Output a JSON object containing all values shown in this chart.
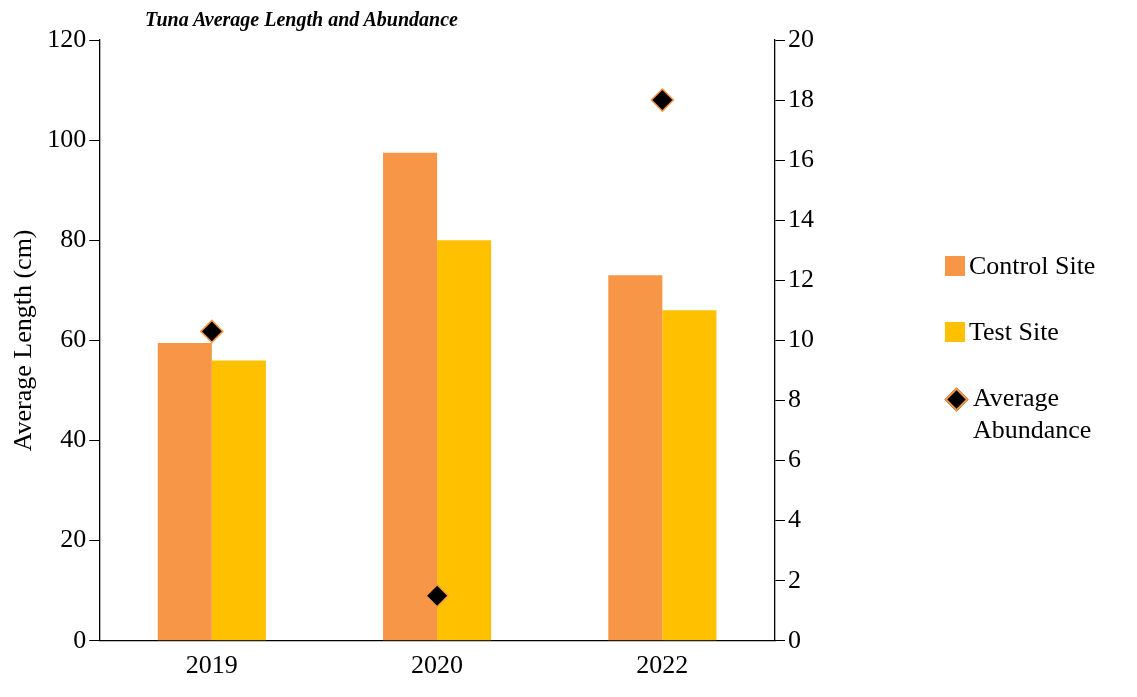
{
  "chart_data": {
    "type": "bar",
    "title": "Tuna Average Length and Abundance",
    "ylabel": "Average Length (cm)",
    "categories": [
      "2019",
      "2020",
      "2022"
    ],
    "series": [
      {
        "name": "Control Site",
        "type": "bar",
        "color": "#f79646",
        "values": [
          59.5,
          97.5,
          73
        ]
      },
      {
        "name": "Test Site",
        "type": "bar",
        "color": "#ffc000",
        "values": [
          56,
          80,
          66
        ]
      },
      {
        "name": "Average Abundance",
        "type": "scatter",
        "axis": "y2",
        "color": "#000000",
        "values": [
          10.3,
          1.5,
          18
        ]
      }
    ],
    "ylim": [
      0,
      120
    ],
    "yticks": [
      0,
      20,
      40,
      60,
      80,
      100,
      120
    ],
    "y2lim": [
      0,
      20
    ],
    "y2ticks": [
      0,
      2,
      4,
      6,
      8,
      10,
      12,
      14,
      16,
      18,
      20
    ],
    "marker": "diamond",
    "grid": false,
    "legend": "right"
  }
}
